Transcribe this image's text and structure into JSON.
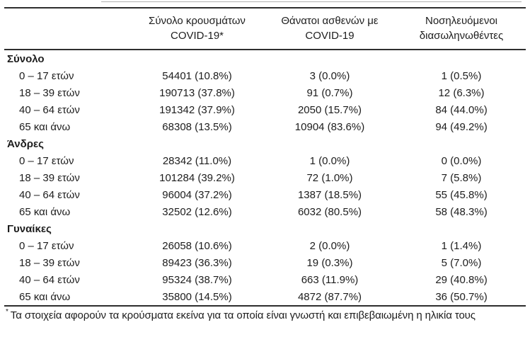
{
  "table": {
    "col_headers": [
      {
        "line1": "Σύνολο κρουσμάτων",
        "line2": "COVID-19*"
      },
      {
        "line1": "Θάνατοι ασθενών με",
        "line2": "COVID-19"
      },
      {
        "line1": "Νοσηλευόμενοι",
        "line2": "διασωληνωθέντες"
      }
    ],
    "groups": [
      {
        "label": "Σύνολο",
        "rows": [
          {
            "age": "0 – 17 ετών",
            "cases": "54401 (10.8%)",
            "deaths": "3 (0.0%)",
            "intubated": "1 (0.5%)"
          },
          {
            "age": "18 – 39 ετών",
            "cases": "190713 (37.8%)",
            "deaths": "91 (0.7%)",
            "intubated": "12 (6.3%)"
          },
          {
            "age": "40 – 64 ετών",
            "cases": "191342 (37.9%)",
            "deaths": "2050 (15.7%)",
            "intubated": "84 (44.0%)"
          },
          {
            "age": "65 και άνω",
            "cases": "68308 (13.5%)",
            "deaths": "10904 (83.6%)",
            "intubated": "94 (49.2%)"
          }
        ]
      },
      {
        "label": "Άνδρες",
        "rows": [
          {
            "age": "0 – 17 ετών",
            "cases": "28342 (11.0%)",
            "deaths": "1 (0.0%)",
            "intubated": "0 (0.0%)"
          },
          {
            "age": "18 – 39 ετών",
            "cases": "101284 (39.2%)",
            "deaths": "72 (1.0%)",
            "intubated": "7 (5.8%)"
          },
          {
            "age": "40 – 64 ετών",
            "cases": "96004 (37.2%)",
            "deaths": "1387 (18.5%)",
            "intubated": "55 (45.8%)"
          },
          {
            "age": "65 και άνω",
            "cases": "32502 (12.6%)",
            "deaths": "6032 (80.5%)",
            "intubated": "58 (48.3%)"
          }
        ]
      },
      {
        "label": "Γυναίκες",
        "rows": [
          {
            "age": "0 – 17 ετών",
            "cases": "26058 (10.6%)",
            "deaths": "2 (0.0%)",
            "intubated": "1 (1.4%)"
          },
          {
            "age": "18 – 39 ετών",
            "cases": "89423 (36.3%)",
            "deaths": "19 (0.3%)",
            "intubated": "5 (7.0%)"
          },
          {
            "age": "40 – 64 ετών",
            "cases": "95324 (38.7%)",
            "deaths": "663 (11.9%)",
            "intubated": "29 (40.8%)"
          },
          {
            "age": "65 και άνω",
            "cases": "35800 (14.5%)",
            "deaths": "4872 (87.7%)",
            "intubated": "36 (50.7%)"
          }
        ]
      }
    ]
  },
  "footnote": {
    "marker": "*",
    "text": "Τα στοιχεία αφορούν τα κρούσματα εκείνα για τα οποία είναι γνωστή και επιβεβαιωμένη η ηλικία τους"
  }
}
